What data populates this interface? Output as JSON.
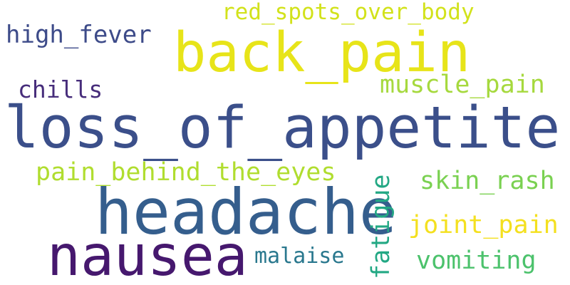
{
  "words": {
    "loss_of_appetite": {
      "text": "loss_of_appetite",
      "color": "#3b4f8a"
    },
    "headache": {
      "text": "headache",
      "color": "#355e8d"
    },
    "back_pain": {
      "text": "back_pain",
      "color": "#e7e419"
    },
    "nausea": {
      "text": "nausea",
      "color": "#46186e"
    },
    "fatigue": {
      "text": "fatigue",
      "color": "#23a884"
    },
    "red_spots_over_body": {
      "text": "red_spots_over_body",
      "color": "#d2e21b"
    },
    "high_fever": {
      "text": "high_fever",
      "color": "#3d4b89"
    },
    "muscle_pain": {
      "text": "muscle_pain",
      "color": "#a6d93e"
    },
    "chills": {
      "text": "chills",
      "color": "#472d7b"
    },
    "pain_behind_the_eyes": {
      "text": "pain_behind_the_eyes",
      "color": "#b0dd2f"
    },
    "skin_rash": {
      "text": "skin_rash",
      "color": "#7ad151"
    },
    "joint_pain": {
      "text": "joint_pain",
      "color": "#f4e01f"
    },
    "malaise": {
      "text": "malaise",
      "color": "#2a788e"
    },
    "vomiting": {
      "text": "vomiting",
      "color": "#4cc26c"
    }
  }
}
